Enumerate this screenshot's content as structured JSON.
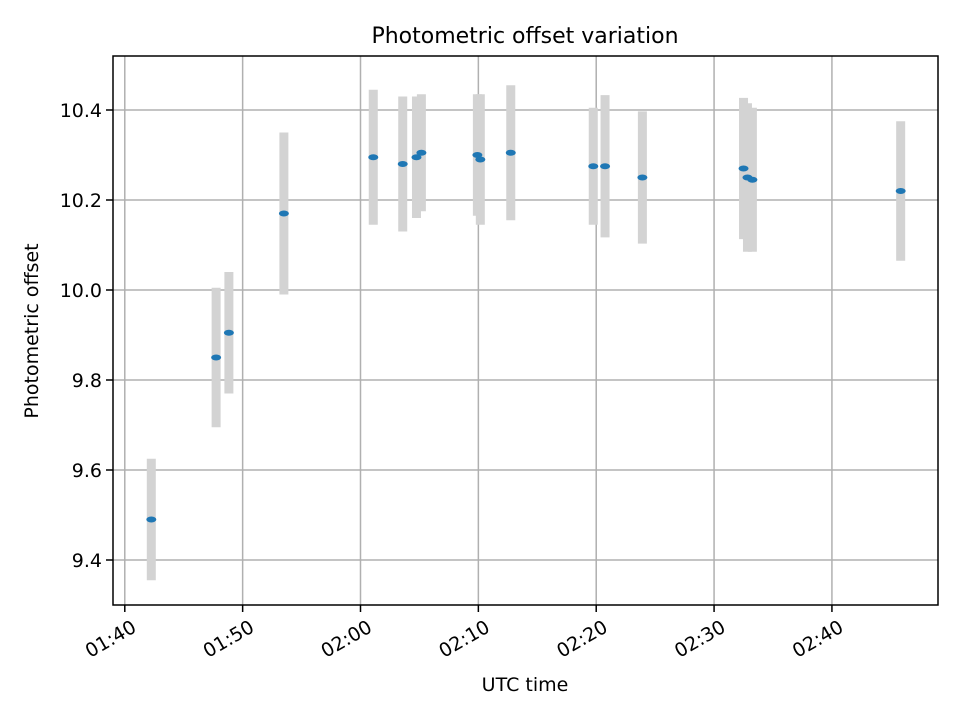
{
  "chart_data": {
    "type": "scatter",
    "title": "Photometric offset variation",
    "xlabel": "UTC time",
    "ylabel": "Photometric offset",
    "x_axis_type": "time",
    "xlim": [
      "01:39",
      "02:49"
    ],
    "ylim": [
      9.3,
      10.52
    ],
    "x_ticks": [
      "01:40",
      "01:50",
      "02:00",
      "02:10",
      "02:20",
      "02:30",
      "02:40"
    ],
    "y_ticks": [
      9.4,
      9.6,
      9.8,
      10.0,
      10.2,
      10.4
    ],
    "grid": true,
    "error_bars": true,
    "colors": {
      "points": "#1f77b4",
      "errorbars": "#d3d3d3",
      "grid": "#b0b0b0"
    },
    "points": [
      {
        "x": "01:42:15",
        "y": 9.49,
        "err": 0.135
      },
      {
        "x": "01:47:45",
        "y": 9.85,
        "err": 0.155
      },
      {
        "x": "01:48:50",
        "y": 9.905,
        "err": 0.135
      },
      {
        "x": "01:53:30",
        "y": 10.17,
        "err": 0.18
      },
      {
        "x": "02:01:05",
        "y": 10.295,
        "err": 0.15
      },
      {
        "x": "02:03:35",
        "y": 10.28,
        "err": 0.15
      },
      {
        "x": "02:04:45",
        "y": 10.295,
        "err": 0.135
      },
      {
        "x": "02:05:10",
        "y": 10.305,
        "err": 0.13
      },
      {
        "x": "02:09:55",
        "y": 10.3,
        "err": 0.135
      },
      {
        "x": "02:10:10",
        "y": 10.29,
        "err": 0.145
      },
      {
        "x": "02:12:45",
        "y": 10.305,
        "err": 0.15
      },
      {
        "x": "02:19:45",
        "y": 10.275,
        "err": 0.13
      },
      {
        "x": "02:20:45",
        "y": 10.275,
        "err": 0.158
      },
      {
        "x": "02:23:55",
        "y": 10.25,
        "err": 0.147
      },
      {
        "x": "02:32:30",
        "y": 10.27,
        "err": 0.157
      },
      {
        "x": "02:32:50",
        "y": 10.25,
        "err": 0.165
      },
      {
        "x": "02:33:15",
        "y": 10.245,
        "err": 0.16
      },
      {
        "x": "02:45:50",
        "y": 10.22,
        "err": 0.155
      }
    ]
  }
}
